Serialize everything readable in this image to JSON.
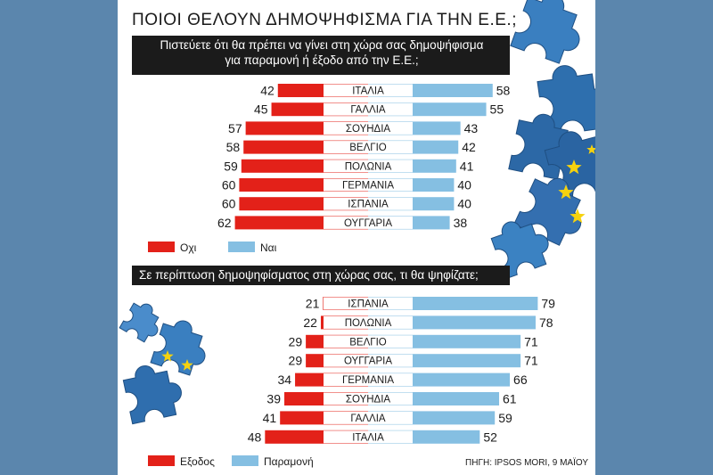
{
  "title": "ΠΟΙΟΙ ΘΕΛΟΥΝ ΔΗΜΟΨΗΦΙΣΜΑ ΓΙΑ ΤΗΝ Ε.Ε.;",
  "source": "ΠΗΓΗ: IPSOS MORI, 9 ΜΑΪΟΥ",
  "colors": {
    "red": "#e32119",
    "blue": "#85bfe2",
    "dark": "#1b1b1b",
    "puzzle": "#2e6fae",
    "star": "#f6d20e"
  },
  "chart_data": [
    {
      "type": "bar",
      "title": "Πιστεύετε ότι θα πρέπει να γίνει στη χώρα σας δημοψήφισμα για παραμονή ή έξοδο από την Ε.Ε.;",
      "title_lines": [
        "Πιστεύετε ότι θα πρέπει να γίνει στη χώρα σας δημοψήφισμα",
        "για παραμονή ή έξοδο από την Ε.Ε.;"
      ],
      "categories": [
        "ΙΤΑΛΙΑ",
        "ΓΑΛΛΙΑ",
        "ΣΟΥΗΔΙΑ",
        "ΒΕΛΓΙΟ",
        "ΠΟΛΩΝΙΑ",
        "ΓΕΡΜΑΝΙΑ",
        "ΙΣΠΑΝΙΑ",
        "ΟΥΓΓΑΡΙΑ"
      ],
      "series": [
        {
          "name": "Οχι",
          "values": [
            42,
            45,
            57,
            58,
            59,
            60,
            60,
            62
          ],
          "color": "#e32119"
        },
        {
          "name": "Ναι",
          "values": [
            58,
            55,
            43,
            42,
            41,
            40,
            40,
            38
          ],
          "color": "#85bfe2"
        }
      ],
      "legend": "bottom-left"
    },
    {
      "type": "bar",
      "title": "Σε περίπτωση δημοψηφίσματος στη χώρας σας, τι θα ψηφίζατε;",
      "categories": [
        "ΙΣΠΑΝΙΑ",
        "ΠΟΛΩΝΙΑ",
        "ΒΕΛΓΙΟ",
        "ΟΥΓΓΑΡΙΑ",
        "ΓΕΡΜΑΝΙΑ",
        "ΣΟΥΗΔΙΑ",
        "ΓΑΛΛΙΑ",
        "ΙΤΑΛΙΑ"
      ],
      "series": [
        {
          "name": "Εξοδος",
          "values": [
            21,
            22,
            29,
            29,
            34,
            39,
            41,
            48
          ],
          "color": "#e32119"
        },
        {
          "name": "Παραμονή",
          "values": [
            79,
            78,
            71,
            71,
            66,
            61,
            59,
            52
          ],
          "color": "#85bfe2"
        }
      ],
      "legend": "bottom-left"
    }
  ]
}
